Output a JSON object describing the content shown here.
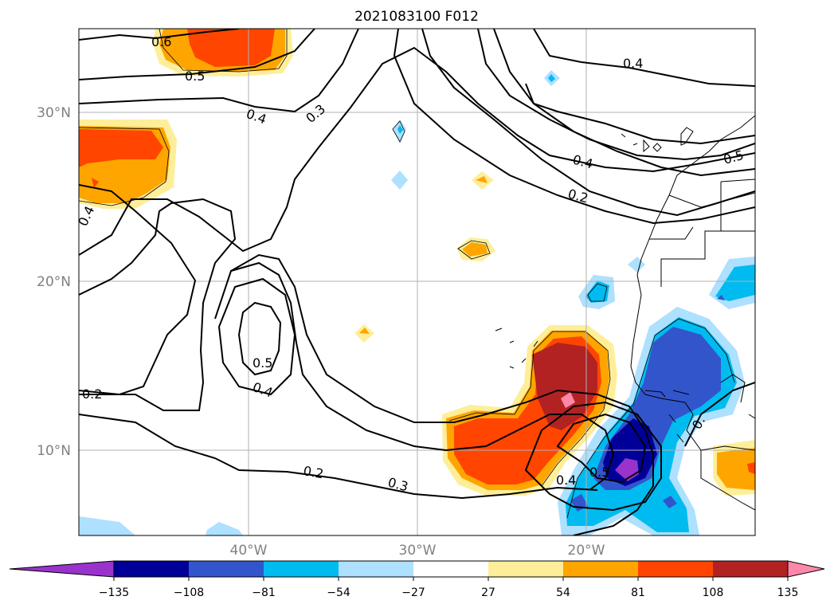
{
  "title": "2021083100 F012",
  "map": {
    "lat_ticks": [
      "10°N",
      "20°N",
      "30°N"
    ],
    "lon_ticks": [
      "40°W",
      "30°W",
      "20°W"
    ],
    "lat_range": [
      5,
      35
    ],
    "lon_range": [
      -50,
      -10
    ],
    "gridlines": true,
    "coastlines": true
  },
  "colorbar": {
    "orientation": "horizontal",
    "extend": "both",
    "levels": [
      -135,
      -108,
      -81,
      -54,
      -27,
      27,
      54,
      81,
      108,
      135
    ],
    "tick_labels": [
      "−135",
      "−108",
      "−81",
      "−54",
      "−27",
      "27",
      "54",
      "81",
      "108",
      "135"
    ],
    "colors": [
      "#9933cc",
      "#000099",
      "#3355cc",
      "#00bbf0",
      "#aee0ff",
      "#ffffff",
      "#ffee99",
      "#ffa500",
      "#ff4500",
      "#b22222",
      "#ff88aa"
    ]
  },
  "contour_labels": [
    "0.6",
    "0.5",
    "0.4",
    "0.3",
    "0.4",
    "0.4",
    "0.4",
    "0.2",
    "0.5",
    "0.5",
    "0.4",
    "0.2",
    "0.2",
    "0.3",
    "0.4",
    "0.5",
    "0."
  ]
}
